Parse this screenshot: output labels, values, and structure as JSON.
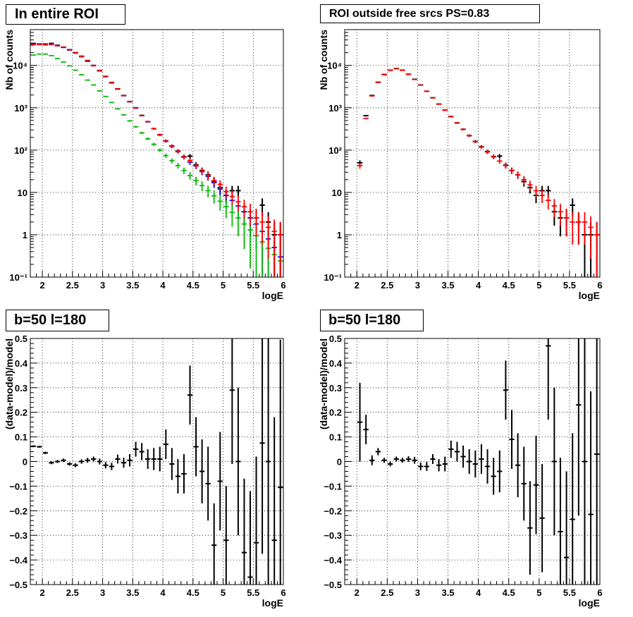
{
  "chart_data": [
    {
      "type": "scatter",
      "title": "In entire ROI",
      "xlabel": "logE",
      "ylabel": "Nb of counts",
      "xlim": [
        1.8,
        6.0
      ],
      "ylim": [
        0.1,
        70000
      ],
      "y_scale": "log",
      "x_ticks": [
        2,
        2.5,
        3,
        3.5,
        4,
        4.5,
        5,
        5.5,
        6
      ],
      "x_tick_labels": [
        "2",
        "2.5",
        "3",
        "3.5",
        "4",
        "4.5",
        "5",
        "5.5",
        "6"
      ],
      "y_ticks": [
        0.1,
        1,
        10,
        100,
        1000,
        10000
      ],
      "y_tick_labels": [
        "10⁻¹",
        "1",
        "10",
        "10²",
        "10³",
        "10⁴"
      ],
      "grid": true,
      "series": [
        {
          "color": "#000000",
          "x": [
            1.85,
            1.95,
            2.05,
            2.15,
            2.25,
            2.35,
            2.45,
            2.55,
            2.65,
            2.75,
            2.85,
            2.95,
            3.05,
            3.15,
            3.25,
            3.35,
            3.45,
            3.55,
            3.65,
            3.75,
            3.85,
            3.95,
            4.05,
            4.15,
            4.25,
            4.35,
            4.45,
            4.55,
            4.65,
            4.75,
            4.85,
            4.95,
            5.05,
            5.15,
            5.25,
            5.35,
            5.45,
            5.55,
            5.65,
            5.75,
            5.85,
            5.95
          ],
          "y": [
            33000,
            32000,
            32000,
            33000,
            30000,
            27000,
            23500,
            20000,
            16500,
            13000,
            10000,
            7600,
            5500,
            3950,
            2800,
            1950,
            1400,
            1000,
            660,
            470,
            320,
            230,
            165,
            125,
            95,
            70,
            72,
            45,
            33,
            26,
            18,
            13,
            8.5,
            11,
            11,
            3.5,
            2.5,
            2.5,
            5,
            2,
            1,
            1
          ]
        },
        {
          "color": "#0000ff",
          "x": [
            1.85,
            1.95,
            2.05,
            2.15,
            2.25,
            2.35,
            2.45,
            2.55,
            2.65,
            2.75,
            2.85,
            2.95,
            3.05,
            3.15,
            3.25,
            3.35,
            3.45,
            3.55,
            3.65,
            3.75,
            3.85,
            3.95,
            4.05,
            4.15,
            4.25,
            4.35,
            4.45,
            4.55,
            4.65,
            4.75,
            4.85,
            4.95,
            5.05,
            5.15,
            5.25,
            5.35,
            5.45,
            5.55,
            5.65,
            5.75,
            5.85,
            5.95
          ],
          "y": [
            31000,
            31000,
            30500,
            31000,
            29000,
            26500,
            23000,
            19500,
            16000,
            12500,
            9800,
            7400,
            5400,
            3850,
            2750,
            1920,
            1380,
            980,
            650,
            465,
            318,
            228,
            162,
            122,
            92,
            68,
            52,
            42,
            31,
            24,
            17,
            12,
            8.5,
            6.5,
            4.8,
            3.5,
            2.5,
            1.8,
            1.2,
            0.8,
            0.5,
            0.3
          ]
        },
        {
          "color": "#00bb00",
          "x": [
            1.85,
            1.95,
            2.05,
            2.15,
            2.25,
            2.35,
            2.45,
            2.55,
            2.65,
            2.75,
            2.85,
            2.95,
            3.05,
            3.15,
            3.25,
            3.35,
            3.45,
            3.55,
            3.65,
            3.75,
            3.85,
            3.95,
            4.05,
            4.15,
            4.25,
            4.35,
            4.45,
            4.55,
            4.65,
            4.75,
            4.85,
            4.95,
            5.05,
            5.15,
            5.25,
            5.35,
            5.45,
            5.55,
            5.65,
            5.75,
            5.85,
            5.95
          ],
          "y": [
            17500,
            18500,
            18500,
            17000,
            14500,
            12000,
            9800,
            7700,
            6000,
            4500,
            3450,
            2500,
            1850,
            1330,
            940,
            680,
            490,
            355,
            255,
            185,
            137,
            100,
            74,
            56,
            43,
            33,
            25,
            19,
            14.5,
            11,
            8.3,
            6.2,
            4.6,
            3.4,
            2.5,
            1.8,
            1.3,
            0.95,
            0.68,
            0.48,
            0.34,
            0.24
          ]
        },
        {
          "color": "#ff0000",
          "x": [
            1.85,
            1.95,
            2.05,
            2.15,
            2.25,
            2.35,
            2.45,
            2.55,
            2.65,
            2.75,
            2.85,
            2.95,
            3.05,
            3.15,
            3.25,
            3.35,
            3.45,
            3.55,
            3.65,
            3.75,
            3.85,
            3.95,
            4.05,
            4.15,
            4.25,
            4.35,
            4.45,
            4.55,
            4.65,
            4.75,
            4.85,
            4.95,
            5.05,
            5.15,
            5.25,
            5.35,
            5.45,
            5.55,
            5.65,
            5.75,
            5.85,
            5.95
          ],
          "y": [
            31500,
            31500,
            31000,
            31500,
            29500,
            27000,
            23300,
            19800,
            16300,
            12800,
            9900,
            7500,
            5450,
            3900,
            2780,
            1940,
            1390,
            990,
            655,
            468,
            320,
            230,
            163,
            124,
            94,
            69,
            57,
            43,
            32,
            25,
            19,
            15.5,
            10.5,
            8,
            6,
            4.6,
            3.5,
            2.5,
            2,
            1.5,
            1.2,
            1
          ]
        }
      ]
    },
    {
      "type": "scatter",
      "title": "ROI outside free srcs PS=0.83",
      "xlabel": "logE",
      "ylabel": "Nb of counts",
      "xlim": [
        1.8,
        6.0
      ],
      "ylim": [
        0.1,
        70000
      ],
      "y_scale": "log",
      "x_ticks": [
        2,
        2.5,
        3,
        3.5,
        4,
        4.5,
        5,
        5.5,
        6
      ],
      "x_tick_labels": [
        "2",
        "2.5",
        "3",
        "3.5",
        "4",
        "4.5",
        "5",
        "5.5",
        "6"
      ],
      "y_ticks": [
        0.1,
        1,
        10,
        100,
        1000,
        10000
      ],
      "y_tick_labels": [
        "10⁻¹",
        "1",
        "10",
        "10²",
        "10³",
        "10⁴"
      ],
      "grid": true,
      "series": [
        {
          "color": "#000000",
          "x": [
            2.05,
            2.15,
            2.25,
            2.35,
            2.45,
            2.55,
            2.65,
            2.75,
            2.85,
            2.95,
            3.05,
            3.15,
            3.25,
            3.35,
            3.45,
            3.55,
            3.65,
            3.75,
            3.85,
            3.95,
            4.05,
            4.15,
            4.25,
            4.35,
            4.45,
            4.55,
            4.65,
            4.75,
            4.85,
            4.95,
            5.05,
            5.15,
            5.25,
            5.35,
            5.45,
            5.55,
            5.65,
            5.75,
            5.85,
            5.95
          ],
          "y": [
            50,
            650,
            1950,
            4000,
            6100,
            7700,
            8400,
            7700,
            6200,
            4700,
            3450,
            2450,
            1720,
            1220,
            880,
            620,
            440,
            310,
            220,
            160,
            120,
            92,
            70,
            72,
            44,
            33,
            26,
            18,
            13,
            8.5,
            11,
            11,
            3.5,
            2.5,
            2.5,
            5,
            2,
            1,
            1,
            1
          ]
        },
        {
          "color": "#ff0000",
          "x": [
            2.05,
            2.15,
            2.25,
            2.35,
            2.45,
            2.55,
            2.65,
            2.75,
            2.85,
            2.95,
            3.05,
            3.15,
            3.25,
            3.35,
            3.45,
            3.55,
            3.65,
            3.75,
            3.85,
            3.95,
            4.05,
            4.15,
            4.25,
            4.35,
            4.45,
            4.55,
            4.65,
            4.75,
            4.85,
            4.95,
            5.05,
            5.15,
            5.25,
            5.35,
            5.45,
            5.55,
            5.65,
            5.75,
            5.85,
            5.95
          ],
          "y": [
            43,
            560,
            1900,
            3950,
            6000,
            7650,
            8300,
            7650,
            6150,
            4650,
            3420,
            2430,
            1710,
            1215,
            875,
            615,
            438,
            308,
            218,
            158,
            118,
            90,
            69,
            55,
            43,
            33,
            26,
            20,
            15,
            11,
            8.5,
            6.5,
            4.8,
            3.5,
            2.5,
            2,
            2,
            2,
            1.5,
            1
          ]
        }
      ]
    },
    {
      "type": "scatter",
      "title": "b=50 l=180",
      "xlabel": "logE",
      "ylabel": "(data-model)/model",
      "xlim": [
        1.8,
        6.0
      ],
      "ylim": [
        -0.5,
        0.5
      ],
      "x_ticks": [
        2,
        2.5,
        3,
        3.5,
        4,
        4.5,
        5,
        5.5,
        6
      ],
      "x_tick_labels": [
        "2",
        "2.5",
        "3",
        "3.5",
        "4",
        "4.5",
        "5",
        "5.5",
        "6"
      ],
      "y_ticks": [
        -0.5,
        -0.4,
        -0.3,
        -0.2,
        -0.1,
        0,
        0.1,
        0.2,
        0.3,
        0.4,
        0.5
      ],
      "y_tick_labels": [
        "−0.5",
        "−0.4",
        "−0.3",
        "−0.2",
        "−0.1",
        "0",
        "0.1",
        "0.2",
        "0.3",
        "0.4",
        "0.5"
      ],
      "grid": true,
      "series": [
        {
          "color": "#000000",
          "x": [
            1.85,
            1.95,
            2.05,
            2.15,
            2.25,
            2.35,
            2.45,
            2.55,
            2.65,
            2.75,
            2.85,
            2.95,
            3.05,
            3.15,
            3.25,
            3.35,
            3.45,
            3.55,
            3.65,
            3.75,
            3.85,
            3.95,
            4.05,
            4.15,
            4.25,
            4.35,
            4.45,
            4.55,
            4.65,
            4.75,
            4.85,
            4.95,
            5.05,
            5.15,
            5.25,
            5.35,
            5.45,
            5.55,
            5.65,
            5.75,
            5.85,
            5.95
          ],
          "y": [
            0.062,
            0.06,
            0.035,
            -0.005,
            0.0,
            0.005,
            -0.01,
            -0.015,
            0.0,
            0.005,
            0.01,
            0.0,
            -0.015,
            -0.02,
            0.01,
            -0.005,
            0.005,
            0.05,
            0.04,
            0.01,
            0.01,
            0.01,
            0.07,
            -0.01,
            -0.06,
            -0.05,
            0.27,
            0.06,
            -0.04,
            -0.09,
            -0.34,
            -0.08,
            -0.32,
            0.29,
            0.0,
            -0.37,
            -0.47,
            -0.33,
            0.075,
            0.0,
            -0.32,
            -0.105
          ],
          "yerr": [
            0.004,
            0.004,
            0.005,
            0.006,
            0.006,
            0.007,
            0.007,
            0.008,
            0.009,
            0.01,
            0.01,
            0.012,
            0.013,
            0.015,
            0.018,
            0.02,
            0.025,
            0.03,
            0.035,
            0.04,
            0.045,
            0.05,
            0.06,
            0.065,
            0.07,
            0.08,
            0.12,
            0.12,
            0.13,
            0.15,
            0.17,
            0.2,
            0.22,
            0.3,
            0.3,
            0.3,
            0.35,
            0.35,
            0.45,
            0.5,
            0.5,
            0.6
          ]
        }
      ]
    },
    {
      "type": "scatter",
      "title": "b=50 l=180",
      "xlabel": "logE",
      "ylabel": "(data-model)/model",
      "xlim": [
        1.8,
        6.0
      ],
      "ylim": [
        -0.5,
        0.5
      ],
      "x_ticks": [
        2,
        2.5,
        3,
        3.5,
        4,
        4.5,
        5,
        5.5,
        6
      ],
      "x_tick_labels": [
        "2",
        "2.5",
        "3",
        "3.5",
        "4",
        "4.5",
        "5",
        "5.5",
        "6"
      ],
      "y_ticks": [
        -0.5,
        -0.4,
        -0.3,
        -0.2,
        -0.1,
        0,
        0.1,
        0.2,
        0.3,
        0.4,
        0.5
      ],
      "y_tick_labels": [
        "−0.5",
        "−0.4",
        "−0.3",
        "−0.2",
        "−0.1",
        "0",
        "0.1",
        "0.2",
        "0.3",
        "0.4",
        "0.5"
      ],
      "grid": true,
      "series": [
        {
          "color": "#000000",
          "x": [
            2.05,
            2.15,
            2.25,
            2.35,
            2.45,
            2.55,
            2.65,
            2.75,
            2.85,
            2.95,
            3.05,
            3.15,
            3.25,
            3.35,
            3.45,
            3.55,
            3.65,
            3.75,
            3.85,
            3.95,
            4.05,
            4.15,
            4.25,
            4.35,
            4.45,
            4.55,
            4.65,
            4.75,
            4.85,
            4.95,
            5.05,
            5.15,
            5.25,
            5.35,
            5.45,
            5.55,
            5.65,
            5.75,
            5.85,
            5.95
          ],
          "y": [
            0.16,
            0.13,
            0.005,
            0.04,
            0.005,
            -0.01,
            0.01,
            0.005,
            0.01,
            0.005,
            -0.02,
            -0.02,
            0.01,
            -0.015,
            -0.01,
            0.05,
            0.04,
            0.02,
            0.0,
            -0.01,
            0.01,
            -0.02,
            -0.06,
            -0.04,
            0.29,
            0.09,
            -0.015,
            -0.09,
            -0.27,
            -0.095,
            -0.23,
            0.47,
            0.0,
            -0.285,
            -0.39,
            -0.235,
            0.23,
            0.0,
            -0.215,
            0.03
          ],
          "yerr": [
            0.16,
            0.06,
            0.02,
            0.015,
            0.01,
            0.01,
            0.01,
            0.01,
            0.012,
            0.014,
            0.016,
            0.018,
            0.02,
            0.025,
            0.03,
            0.035,
            0.04,
            0.045,
            0.05,
            0.055,
            0.06,
            0.07,
            0.075,
            0.085,
            0.12,
            0.12,
            0.13,
            0.15,
            0.19,
            0.2,
            0.22,
            0.3,
            0.3,
            0.3,
            0.35,
            0.35,
            0.45,
            0.5,
            0.5,
            0.6
          ]
        }
      ]
    }
  ]
}
